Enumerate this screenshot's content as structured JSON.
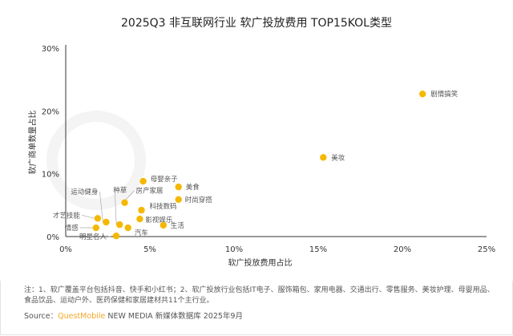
{
  "chart_data": {
    "type": "scatter",
    "title": "2025Q3 非互联网行业 软广投放费用 TOP15KOL类型",
    "xlabel": "软广投放费用占比",
    "ylabel": "软广商单数量占比",
    "xlim": [
      0,
      25
    ],
    "ylim": [
      0,
      30
    ],
    "x_ticks": [
      "0%",
      "5%",
      "10%",
      "15%",
      "20%",
      "25%"
    ],
    "y_ticks": [
      "0%",
      "10%",
      "20%",
      "30%"
    ],
    "grid": false,
    "point_color": "#f5b800",
    "points": [
      {
        "name": "剧情搞笑",
        "x": 21.2,
        "y": 22.7
      },
      {
        "name": "美妆",
        "x": 15.3,
        "y": 12.6
      },
      {
        "name": "母婴亲子",
        "x": 4.6,
        "y": 8.8
      },
      {
        "name": "美食",
        "x": 6.7,
        "y": 7.9
      },
      {
        "name": "时尚穿搭",
        "x": 6.7,
        "y": 5.9
      },
      {
        "name": "房产家居",
        "x": 3.5,
        "y": 5.4
      },
      {
        "name": "科技数码",
        "x": 4.5,
        "y": 4.2
      },
      {
        "name": "影视娱乐",
        "x": 4.4,
        "y": 2.8
      },
      {
        "name": "生活",
        "x": 5.8,
        "y": 1.8
      },
      {
        "name": "才艺技能",
        "x": 1.9,
        "y": 2.9
      },
      {
        "name": "运动健身",
        "x": 2.4,
        "y": 2.3
      },
      {
        "name": "情感",
        "x": 1.8,
        "y": 1.4
      },
      {
        "name": "种草",
        "x": 3.2,
        "y": 1.9
      },
      {
        "name": "汽车",
        "x": 3.7,
        "y": 1.4
      },
      {
        "name": "明星名人",
        "x": 3.0,
        "y": 0.1
      }
    ]
  },
  "notes": "注：1、软广覆盖平台包括抖音、快手和小红书；2、软广投放行业包括IT电子、服饰箱包、家用电器、交通出行、零售服务、美妆护理、母婴用品、食品饮品、运动户外、医药保健和家居建材共11个主行业。",
  "source": {
    "label": "Source：",
    "brand": "QuestMobile",
    "text": " NEW MEDIA 新媒体数据库 2025年9月"
  },
  "watermark": "QUEST MOBILE"
}
